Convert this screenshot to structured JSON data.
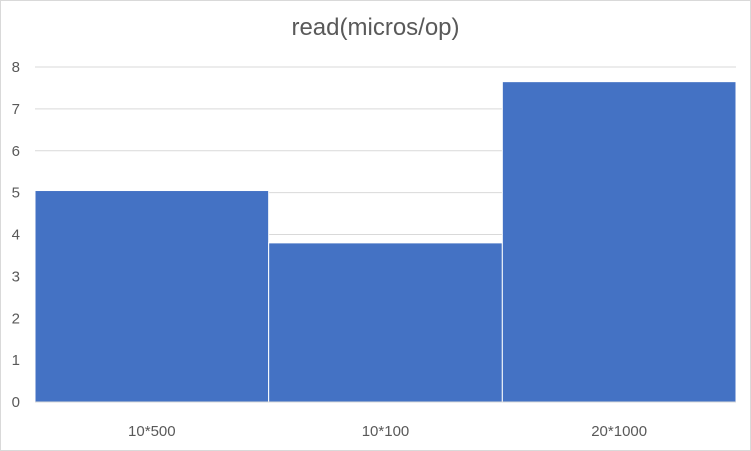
{
  "chart_data": {
    "type": "bar",
    "title": "read(micros/op)",
    "categories": [
      "10*500",
      "10*100",
      "20*1000"
    ],
    "values": [
      5.05,
      3.8,
      7.65
    ],
    "ylim": [
      0,
      8
    ],
    "yticks": [
      "0",
      "1",
      "2",
      "3",
      "4",
      "5",
      "6",
      "7",
      "8"
    ],
    "grid": true,
    "legend": "none",
    "bar_color": "#4472C4"
  }
}
